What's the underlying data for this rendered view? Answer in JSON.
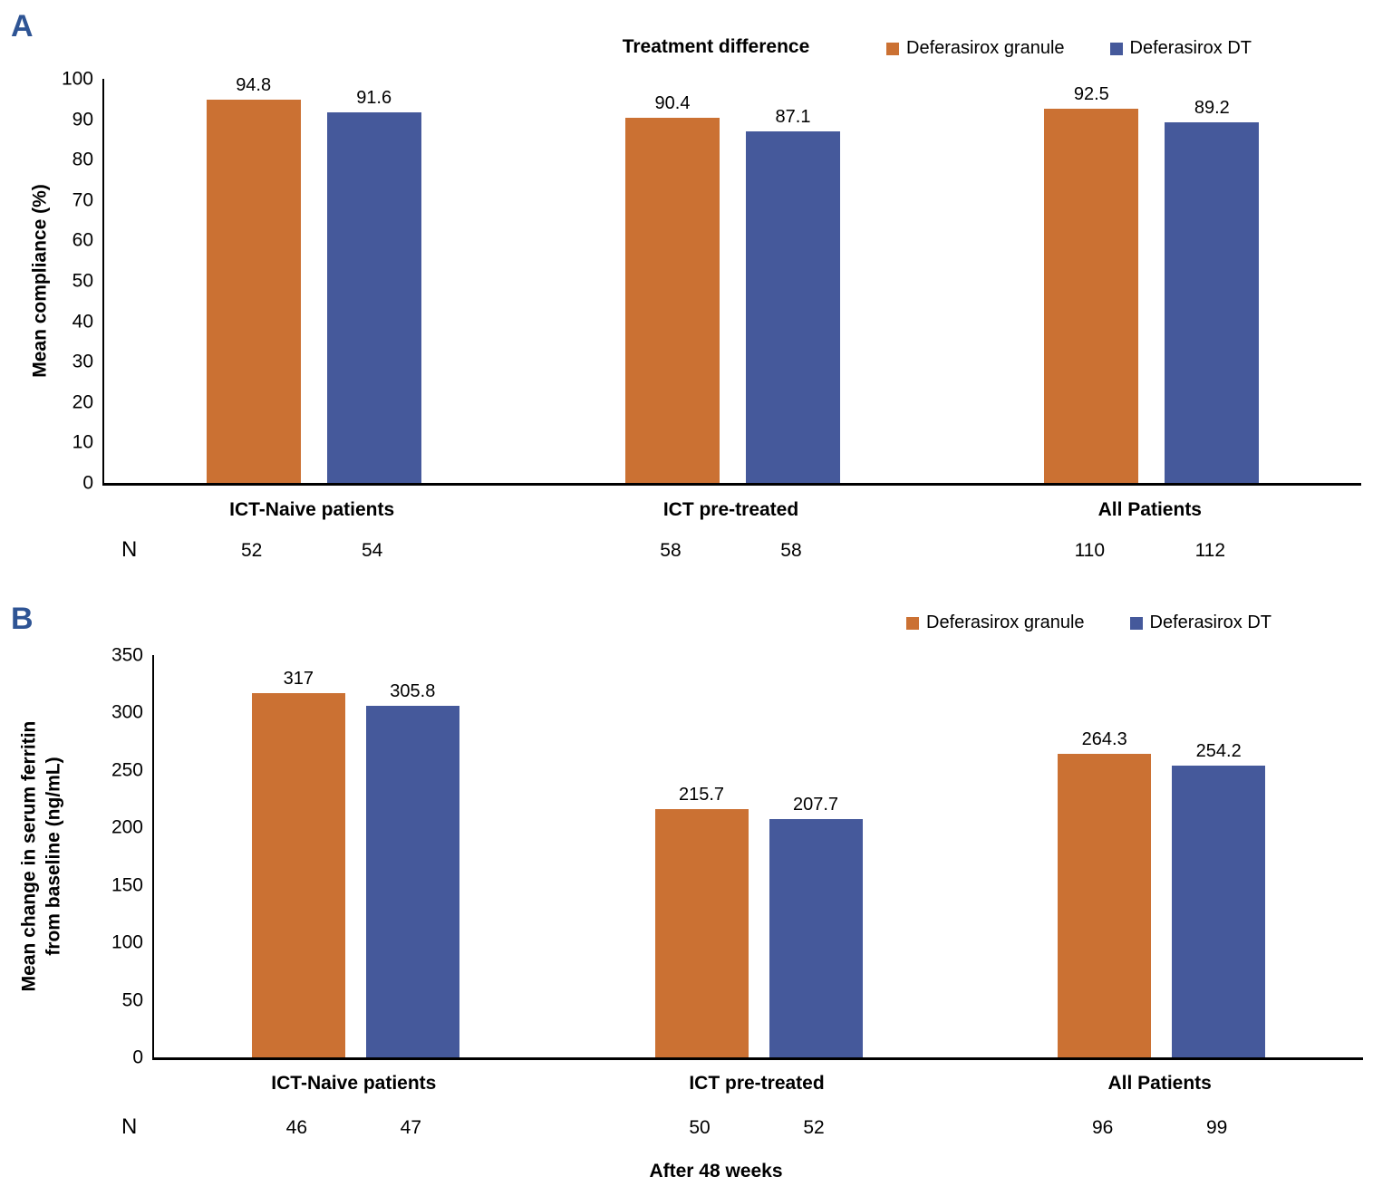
{
  "colors": {
    "granule_orange": "#CB7133",
    "dt_blue": "#45599B",
    "panel_letter_blue": "#2E5494",
    "axis_black": "#000000"
  },
  "chart_data": [
    {
      "panel": "A",
      "type": "bar",
      "title": "Treatment difference",
      "ylabel": "Mean compliance (%)",
      "ylabel_lines": [
        "Mean compliance (%)"
      ],
      "ylim": [
        0,
        100
      ],
      "ytick_step": 10,
      "grid": false,
      "legend_position": "top-right",
      "categories": [
        "ICT-Naive patients",
        "ICT pre-treated",
        "All Patients"
      ],
      "series": [
        {
          "name": "Deferasirox granule",
          "color": "#CB7133",
          "values": [
            94.8,
            90.4,
            92.5
          ]
        },
        {
          "name": "Deferasirox DT",
          "color": "#45599B",
          "values": [
            91.6,
            87.1,
            89.2
          ]
        }
      ],
      "n_label": "N",
      "n_values": [
        [
          52,
          54
        ],
        [
          58,
          58
        ],
        [
          110,
          112
        ]
      ],
      "xlabel": ""
    },
    {
      "panel": "B",
      "type": "bar",
      "title": "",
      "ylabel": "Mean change in serum ferritin from baseline (ng/mL)",
      "ylabel_lines": [
        "Mean change in serum ferritin",
        "from baseline (ng/mL)"
      ],
      "ylim": [
        0,
        350
      ],
      "ytick_step": 50,
      "grid": false,
      "legend_position": "top-right",
      "categories": [
        "ICT-Naive patients",
        "ICT pre-treated",
        "All Patients"
      ],
      "series": [
        {
          "name": "Deferasirox granule",
          "color": "#CB7133",
          "values": [
            317,
            215.7,
            264.3
          ]
        },
        {
          "name": "Deferasirox DT",
          "color": "#45599B",
          "values": [
            305.8,
            207.7,
            254.2
          ]
        }
      ],
      "n_label": "N",
      "n_values": [
        [
          46,
          47
        ],
        [
          50,
          52
        ],
        [
          96,
          99
        ]
      ],
      "xlabel": "After 48 weeks"
    }
  ]
}
